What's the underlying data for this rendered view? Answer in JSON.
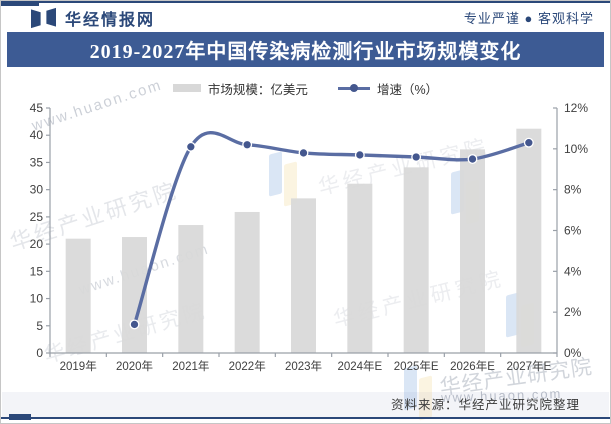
{
  "header": {
    "site_name": "华经情报网",
    "slogan": "专业严谨 ● 客观科学"
  },
  "title": "2019-2027年中国传染病检测行业市场规模变化",
  "legend": [
    {
      "label": "市场规模：亿美元",
      "marker": "bar-swatch"
    },
    {
      "label": "增速（%）",
      "marker": "line-dot"
    }
  ],
  "footer": {
    "source": "资料来源：华经产业研究院整理"
  },
  "watermark": {
    "brand": "华经产业研究院",
    "url": "www.huaon.com"
  },
  "colors": {
    "navy_accent": "#2b4879",
    "banner_bg": "#3d5b94",
    "banner_text": "#ffffff",
    "bar": "#d8d8d8",
    "line": "#5a6da3",
    "dot": "#44578e",
    "axis": "#9aa0a8",
    "tick_text": "#404040"
  },
  "chart_data": {
    "type": "bar",
    "subtype": "bar+line-combo",
    "categories": [
      "2019年",
      "2020年",
      "2021年",
      "2022年",
      "2023年",
      "2024年E",
      "2025年E",
      "2026年E",
      "2027年E"
    ],
    "series": [
      {
        "name": "市场规模：亿美元",
        "type": "bar",
        "axis": "left",
        "values": [
          21.0,
          21.3,
          23.5,
          25.9,
          28.4,
          31.1,
          34.1,
          37.4,
          41.2
        ]
      },
      {
        "name": "增速（%）",
        "type": "line",
        "axis": "right",
        "values": [
          null,
          1.4,
          10.1,
          10.2,
          9.8,
          9.7,
          9.6,
          9.5,
          10.3
        ]
      }
    ],
    "left_axis": {
      "min": 0,
      "max": 45,
      "step": 5,
      "suffix": ""
    },
    "right_axis": {
      "min": 0,
      "max": 12,
      "step": 2,
      "suffix": "%"
    },
    "grid": false,
    "legend_position": "top-center",
    "line_smooth": true
  }
}
